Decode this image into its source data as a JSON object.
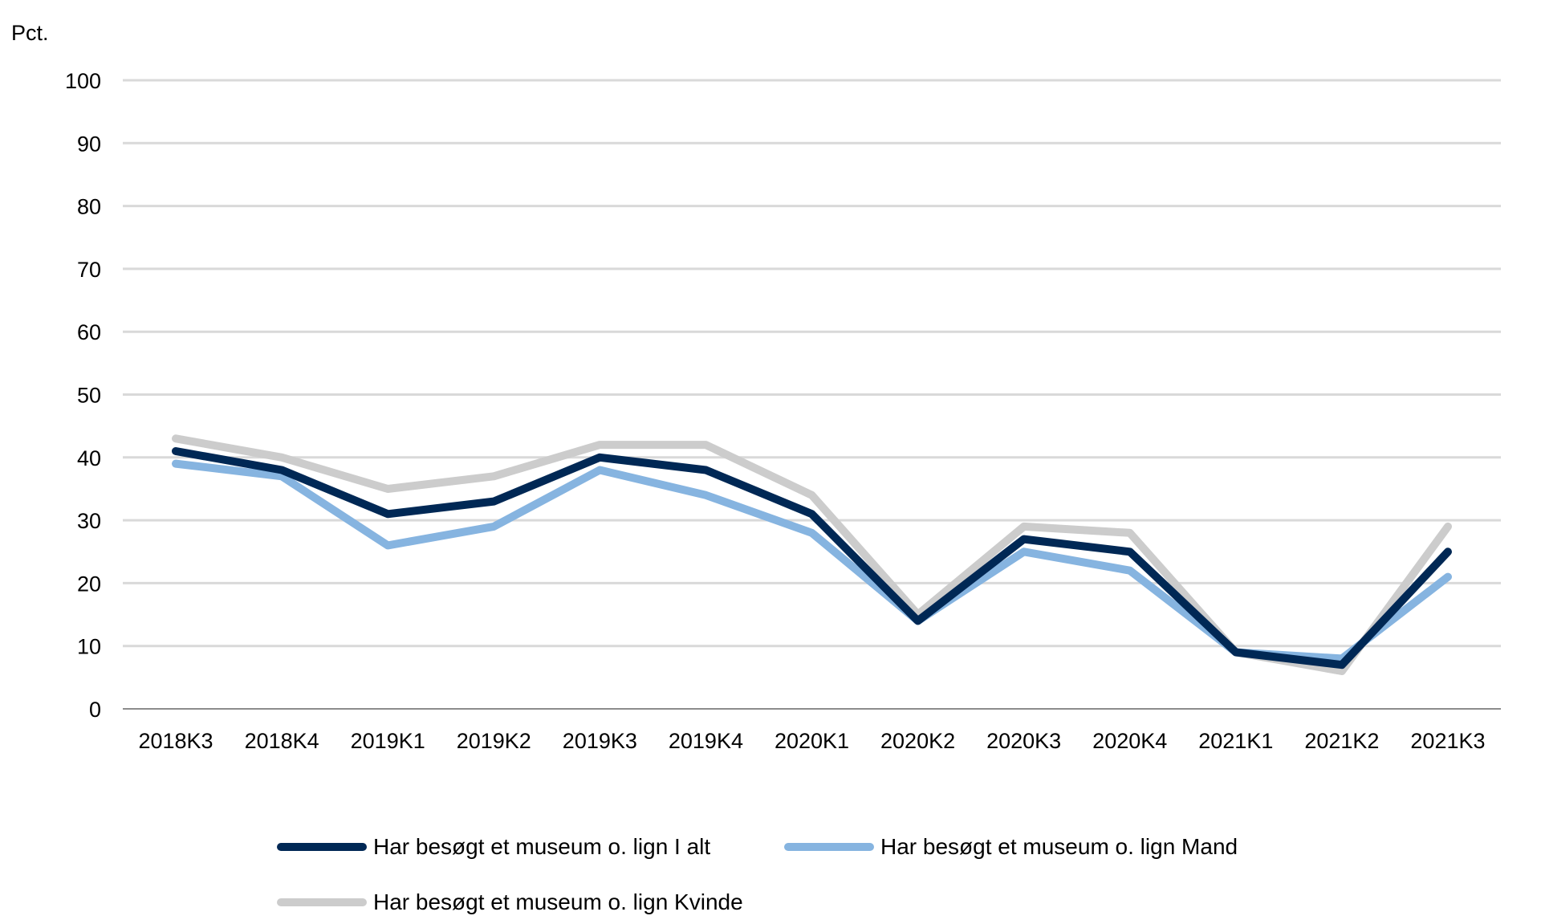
{
  "chart_data": {
    "type": "line",
    "title": "",
    "xlabel": "",
    "ylabel": "Pct.",
    "ylim": [
      0,
      100
    ],
    "yticks": [
      0,
      10,
      20,
      30,
      40,
      50,
      60,
      70,
      80,
      90,
      100
    ],
    "grid": true,
    "legend_position": "bottom",
    "categories": [
      "2018K3",
      "2018K4",
      "2019K1",
      "2019K2",
      "2019K3",
      "2019K4",
      "2020K1",
      "2020K2",
      "2020K3",
      "2020K4",
      "2021K1",
      "2021K2",
      "2021K3"
    ],
    "series": [
      {
        "name": "Har besøgt et museum o. lign I alt",
        "color": "#002855",
        "values": [
          41,
          38,
          31,
          33,
          40,
          38,
          31,
          14,
          27,
          25,
          9,
          7,
          25
        ]
      },
      {
        "name": "Har besøgt et museum o. lign Mand",
        "color": "#86b4e0",
        "values": [
          39,
          37,
          26,
          29,
          38,
          34,
          28,
          14,
          25,
          22,
          9,
          8,
          21
        ]
      },
      {
        "name": "Har besøgt et museum o. lign Kvinde",
        "color": "#cccccc",
        "values": [
          43,
          40,
          35,
          37,
          42,
          42,
          34,
          15,
          29,
          28,
          9,
          6,
          29
        ]
      }
    ]
  }
}
